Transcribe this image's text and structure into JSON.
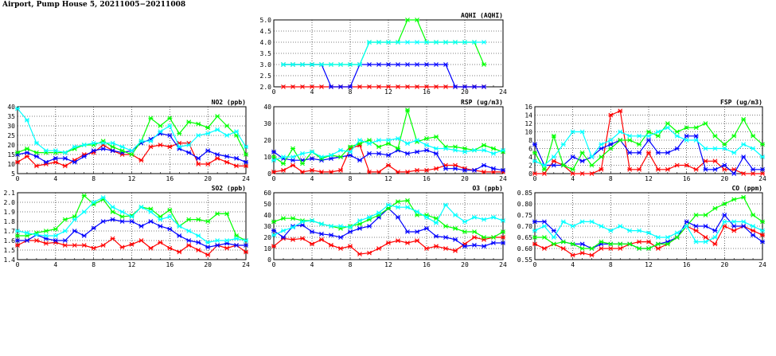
{
  "title": "Airport, Pump House 5, 20211005−20211008",
  "colors": {
    "series": [
      "#ff0000",
      "#0000ff",
      "#00ff00",
      "#00ffff"
    ],
    "grid": "#000000"
  },
  "chart_data": [
    {
      "type": "line",
      "title": "AQHI (AQHI)",
      "xlim": [
        0,
        24
      ],
      "ylim": [
        2.0,
        5.0
      ],
      "xticks": [
        "0",
        "4",
        "8",
        "12",
        "16",
        "20",
        "24"
      ],
      "yticks": [
        "2.0",
        "2.5",
        "3.0",
        "3.5",
        "4.0",
        "4.5",
        "5.0"
      ],
      "x": [
        1,
        2,
        3,
        4,
        5,
        6,
        7,
        8,
        9,
        10,
        11,
        12,
        13,
        14,
        15,
        16,
        17,
        18,
        19,
        20,
        21,
        22
      ],
      "series": [
        {
          "name": "red",
          "values": [
            2,
            2,
            2,
            2,
            2,
            2,
            2,
            2,
            2,
            2,
            2,
            2,
            2,
            2,
            2,
            2,
            2,
            2,
            2,
            2,
            2,
            2
          ]
        },
        {
          "name": "blue",
          "values": [
            3,
            3,
            3,
            3,
            3,
            2,
            2,
            2,
            3,
            3,
            3,
            3,
            3,
            3,
            3,
            3,
            3,
            3,
            2,
            2,
            2,
            2
          ]
        },
        {
          "name": "green",
          "values": [
            3,
            3,
            3,
            3,
            3,
            3,
            3,
            3,
            3,
            4,
            4,
            4,
            4,
            5,
            5,
            4,
            4,
            4,
            4,
            4,
            4,
            3
          ]
        },
        {
          "name": "cyan",
          "values": [
            3,
            3,
            3,
            3,
            3,
            3,
            3,
            3,
            3,
            4,
            4,
            4,
            4,
            4,
            4,
            4,
            4,
            4,
            4,
            4,
            4,
            4
          ]
        }
      ]
    },
    {
      "type": "line",
      "title": "NO2 (ppb)",
      "xlim": [
        0,
        24
      ],
      "ylim": [
        5,
        40
      ],
      "xticks": [
        "0",
        "4",
        "8",
        "12",
        "16",
        "20",
        "24"
      ],
      "yticks": [
        "5",
        "10",
        "15",
        "20",
        "25",
        "30",
        "35",
        "40"
      ],
      "x": [
        0,
        1,
        2,
        3,
        4,
        5,
        6,
        7,
        8,
        9,
        10,
        11,
        12,
        13,
        14,
        15,
        16,
        17,
        18,
        19,
        20,
        21,
        22,
        23,
        24
      ],
      "series": [
        {
          "name": "red",
          "values": [
            11,
            14,
            9,
            10,
            11,
            9,
            12,
            15,
            16,
            20,
            17,
            15,
            15,
            12,
            19,
            20,
            19,
            21,
            21,
            10,
            10,
            13,
            11,
            9,
            9
          ]
        },
        {
          "name": "blue",
          "values": [
            15,
            16,
            14,
            11,
            13,
            13,
            11,
            14,
            17,
            18,
            17,
            16,
            17,
            21,
            23,
            26,
            25,
            18,
            16,
            13,
            17,
            15,
            14,
            13,
            11
          ]
        },
        {
          "name": "green",
          "values": [
            16,
            18,
            16,
            16,
            16,
            16,
            18,
            20,
            20,
            22,
            19,
            17,
            15,
            22,
            34,
            30,
            34,
            26,
            32,
            31,
            29,
            35,
            30,
            25,
            15
          ]
        },
        {
          "name": "cyan",
          "values": [
            39,
            33,
            21,
            17,
            17,
            16,
            19,
            20,
            21,
            21,
            21,
            19,
            17,
            22,
            22,
            27,
            30,
            19,
            20,
            25,
            26,
            28,
            25,
            27,
            19
          ]
        }
      ]
    },
    {
      "type": "line",
      "title": "RSP (ug/m3)",
      "xlim": [
        0,
        24
      ],
      "ylim": [
        0,
        40
      ],
      "xticks": [
        "0",
        "4",
        "8",
        "12",
        "16",
        "20",
        "24"
      ],
      "yticks": [
        "0",
        "10",
        "20",
        "30",
        "40"
      ],
      "x": [
        0,
        1,
        2,
        3,
        4,
        5,
        6,
        7,
        8,
        9,
        10,
        11,
        12,
        13,
        14,
        15,
        16,
        17,
        18,
        19,
        20,
        21,
        22,
        23,
        24
      ],
      "series": [
        {
          "name": "red",
          "values": [
            1,
            2,
            5,
            1,
            2,
            1,
            1,
            2,
            15,
            17,
            1,
            1,
            5,
            1,
            1,
            2,
            2,
            3,
            5,
            5,
            3,
            2,
            1,
            1,
            1
          ]
        },
        {
          "name": "blue",
          "values": [
            13,
            9,
            8,
            8,
            9,
            8,
            9,
            10,
            11,
            8,
            12,
            12,
            11,
            14,
            12,
            13,
            14,
            12,
            3,
            3,
            2,
            2,
            5,
            3,
            2
          ]
        },
        {
          "name": "green",
          "values": [
            10,
            6,
            15,
            6,
            13,
            9,
            11,
            10,
            16,
            18,
            20,
            16,
            18,
            15,
            38,
            19,
            21,
            22,
            16,
            16,
            15,
            14,
            17,
            15,
            13
          ]
        },
        {
          "name": "cyan",
          "values": [
            8,
            10,
            10,
            12,
            13,
            10,
            11,
            14,
            13,
            20,
            18,
            20,
            20,
            21,
            18,
            20,
            17,
            15,
            15,
            14,
            13,
            14,
            14,
            12,
            14
          ]
        }
      ]
    },
    {
      "type": "line",
      "title": "FSP (ug/m3)",
      "xlim": [
        0,
        24
      ],
      "ylim": [
        0,
        16
      ],
      "xticks": [
        "0",
        "4",
        "8",
        "12",
        "16",
        "20",
        "24"
      ],
      "yticks": [
        "0",
        "2",
        "4",
        "6",
        "8",
        "10",
        "12",
        "14",
        "16"
      ],
      "x": [
        0,
        1,
        2,
        3,
        4,
        5,
        6,
        7,
        8,
        9,
        10,
        11,
        12,
        13,
        14,
        15,
        16,
        17,
        18,
        19,
        20,
        21,
        22,
        23,
        24
      ],
      "series": [
        {
          "name": "red",
          "values": [
            0,
            0,
            3,
            2,
            0,
            0,
            0,
            1,
            14,
            15,
            1,
            1,
            5,
            1,
            1,
            2,
            2,
            1,
            3,
            3,
            1,
            1,
            0,
            0,
            0
          ]
        },
        {
          "name": "blue",
          "values": [
            7,
            2,
            2,
            2,
            4,
            3,
            4,
            6,
            7,
            8,
            5,
            5,
            8,
            5,
            5,
            6,
            9,
            9,
            1,
            1,
            2,
            0,
            4,
            1,
            1
          ]
        },
        {
          "name": "green",
          "values": [
            5,
            1,
            9,
            2,
            1,
            5,
            2,
            4,
            6,
            8,
            8,
            7,
            10,
            9,
            12,
            10,
            11,
            11,
            12,
            9,
            7,
            9,
            13,
            9,
            7
          ]
        },
        {
          "name": "cyan",
          "values": [
            3,
            2,
            4,
            7,
            10,
            10,
            4,
            7,
            8,
            10,
            9,
            9,
            9,
            10,
            11,
            9,
            8,
            8,
            6,
            6,
            6,
            5,
            7,
            6,
            4
          ]
        }
      ]
    },
    {
      "type": "line",
      "title": "SO2 (ppb)",
      "xlim": [
        0,
        24
      ],
      "ylim": [
        1.4,
        2.1
      ],
      "xticks": [
        "0",
        "4",
        "8",
        "12",
        "16",
        "20",
        "24"
      ],
      "yticks": [
        "1.4",
        "1.5",
        "1.6",
        "1.7",
        "1.8",
        "1.9",
        "2.0",
        "2.1"
      ],
      "x": [
        0,
        1,
        2,
        3,
        4,
        5,
        6,
        7,
        8,
        9,
        10,
        11,
        12,
        13,
        14,
        15,
        16,
        17,
        18,
        19,
        20,
        21,
        22,
        23,
        24
      ],
      "series": [
        {
          "name": "red",
          "values": [
            1.55,
            1.6,
            1.6,
            1.57,
            1.58,
            1.55,
            1.55,
            1.55,
            1.52,
            1.55,
            1.62,
            1.53,
            1.56,
            1.6,
            1.52,
            1.58,
            1.52,
            1.48,
            1.55,
            1.5,
            1.45,
            1.55,
            1.52,
            1.55,
            1.48
          ]
        },
        {
          "name": "blue",
          "values": [
            1.6,
            1.6,
            1.66,
            1.62,
            1.6,
            1.6,
            1.7,
            1.65,
            1.73,
            1.8,
            1.82,
            1.8,
            1.8,
            1.75,
            1.8,
            1.75,
            1.72,
            1.65,
            1.6,
            1.58,
            1.53,
            1.55,
            1.57,
            1.55,
            1.55
          ]
        },
        {
          "name": "green",
          "values": [
            1.65,
            1.65,
            1.68,
            1.7,
            1.72,
            1.82,
            1.85,
            2.07,
            1.98,
            2.03,
            1.9,
            1.85,
            1.86,
            1.95,
            1.93,
            1.85,
            1.92,
            1.75,
            1.82,
            1.82,
            1.8,
            1.88,
            1.88,
            1.65,
            1.6
          ]
        },
        {
          "name": "cyan",
          "values": [
            1.7,
            1.68,
            1.66,
            1.65,
            1.65,
            1.7,
            1.82,
            1.9,
            2.0,
            2.05,
            1.95,
            1.9,
            1.85,
            1.95,
            1.9,
            1.82,
            1.85,
            1.75,
            1.7,
            1.65,
            1.58,
            1.6,
            1.6,
            1.62,
            1.6
          ]
        }
      ]
    },
    {
      "type": "line",
      "title": "O3 (ppb)",
      "xlim": [
        0,
        24
      ],
      "ylim": [
        0,
        60
      ],
      "xticks": [
        "0",
        "4",
        "8",
        "12",
        "16",
        "20",
        "24"
      ],
      "yticks": [
        "0",
        "10",
        "20",
        "30",
        "40",
        "50",
        "60"
      ],
      "x": [
        0,
        1,
        2,
        3,
        4,
        5,
        6,
        7,
        8,
        9,
        10,
        11,
        12,
        13,
        14,
        15,
        16,
        17,
        18,
        19,
        20,
        21,
        22,
        23,
        24
      ],
      "series": [
        {
          "name": "red",
          "values": [
            12,
            19,
            18,
            19,
            14,
            18,
            13,
            10,
            12,
            5,
            6,
            10,
            15,
            17,
            15,
            17,
            10,
            12,
            10,
            8,
            14,
            20,
            18,
            20,
            20
          ]
        },
        {
          "name": "blue",
          "values": [
            26,
            20,
            30,
            31,
            25,
            23,
            22,
            20,
            25,
            28,
            30,
            38,
            46,
            38,
            25,
            25,
            28,
            21,
            20,
            18,
            12,
            13,
            12,
            15,
            15
          ]
        },
        {
          "name": "green",
          "values": [
            34,
            37,
            37,
            35,
            35,
            32,
            30,
            28,
            30,
            32,
            36,
            40,
            46,
            52,
            53,
            40,
            40,
            37,
            30,
            28,
            25,
            25,
            20,
            20,
            25
          ]
        },
        {
          "name": "cyan",
          "values": [
            22,
            26,
            29,
            34,
            35,
            32,
            30,
            30,
            29,
            35,
            38,
            42,
            49,
            47,
            47,
            43,
            38,
            33,
            49,
            40,
            34,
            38,
            36,
            38,
            35
          ]
        }
      ]
    },
    {
      "type": "line",
      "title": "CO (ppm)",
      "xlim": [
        0,
        24
      ],
      "ylim": [
        0.55,
        0.85
      ],
      "xticks": [
        "0",
        "4",
        "8",
        "12",
        "16",
        "20",
        "24"
      ],
      "yticks": [
        "0.55",
        "0.60",
        "0.65",
        "0.70",
        "0.75",
        "0.80",
        "0.85"
      ],
      "x": [
        0,
        1,
        2,
        3,
        4,
        5,
        6,
        7,
        8,
        9,
        10,
        11,
        12,
        13,
        14,
        15,
        16,
        17,
        18,
        19,
        20,
        21,
        22,
        23,
        24
      ],
      "series": [
        {
          "name": "red",
          "values": [
            0.62,
            0.6,
            0.62,
            0.6,
            0.57,
            0.58,
            0.57,
            0.6,
            0.6,
            0.6,
            0.62,
            0.63,
            0.63,
            0.6,
            0.62,
            0.65,
            0.7,
            0.68,
            0.65,
            0.62,
            0.7,
            0.68,
            0.7,
            0.68,
            0.66
          ]
        },
        {
          "name": "blue",
          "values": [
            0.72,
            0.72,
            0.68,
            0.63,
            0.62,
            0.62,
            0.6,
            0.62,
            0.62,
            0.62,
            0.62,
            0.6,
            0.6,
            0.62,
            0.63,
            0.65,
            0.72,
            0.7,
            0.7,
            0.68,
            0.75,
            0.7,
            0.7,
            0.66,
            0.63
          ]
        },
        {
          "name": "green",
          "values": [
            0.65,
            0.65,
            0.62,
            0.63,
            0.62,
            0.6,
            0.6,
            0.63,
            0.62,
            0.62,
            0.62,
            0.6,
            0.6,
            0.62,
            0.62,
            0.65,
            0.7,
            0.75,
            0.75,
            0.78,
            0.8,
            0.82,
            0.83,
            0.75,
            0.72
          ]
        },
        {
          "name": "cyan",
          "values": [
            0.68,
            0.7,
            0.65,
            0.72,
            0.7,
            0.72,
            0.72,
            0.7,
            0.68,
            0.7,
            0.68,
            0.68,
            0.67,
            0.65,
            0.65,
            0.67,
            0.7,
            0.63,
            0.63,
            0.65,
            0.72,
            0.72,
            0.72,
            0.7,
            0.68
          ]
        }
      ]
    }
  ]
}
